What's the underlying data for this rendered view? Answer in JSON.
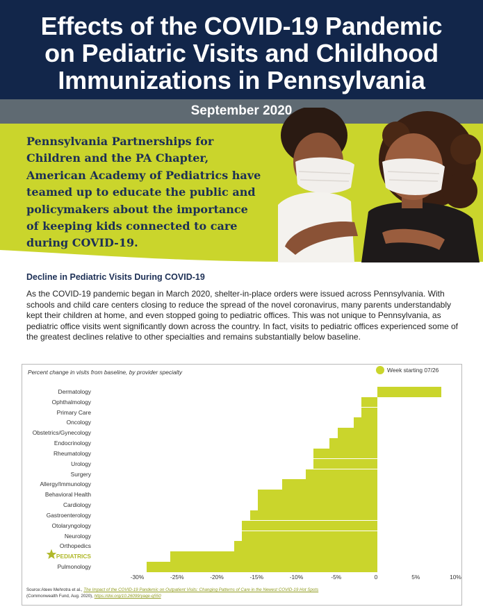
{
  "header": {
    "title_line1": "Effects of the COVID-19 Pandemic",
    "title_line2": "on Pediatric Visits and Childhood",
    "title_line3": "Immunizations in Pennsylvania",
    "date": "September 2020"
  },
  "hero": {
    "lines": [
      "Pennsylvania Partnerships for",
      "Children and the PA Chapter,",
      "American Academy of Pediatrics have",
      "teamed up to educate the public and",
      "policymakers about the importance",
      "of keeping kids connected to care",
      "during COVID-19."
    ]
  },
  "section": {
    "title": "Decline in Pediatric Visits During COVID-19",
    "body": "As the COVID-19 pandemic began in March 2020, shelter-in-place orders were issued across Pennsylvania. With schools and child care centers closing to reduce the spread of the novel coronavirus, many parents understandably kept their children at home, and even stopped going to pediatric offices. This was not unique to Pennsylvania, as pediatric office visits went significantly down across the country. In fact, visits to pediatric offices experienced some of the greatest declines relative to other specialties and remains substantially below baseline."
  },
  "chart_data": {
    "type": "bar",
    "orientation": "horizontal",
    "subtitle": "Percent change in visits from baseline, by provider specialty",
    "categories": [
      "Dermatology",
      "Ophthalmology",
      "Primary Care",
      "Oncology",
      "Obstetrics/Gynecology",
      "Endocrinology",
      "Rheumatology",
      "Urology",
      "Surgery",
      "Allergy/Immunology",
      "Behavioral Health",
      "Cardiology",
      "Gastroenterology",
      "Otolaryngology",
      "Neurology",
      "Orthopedics",
      "PEDIATRICS",
      "Pulmonology"
    ],
    "highlight": "PEDIATRICS",
    "series": [
      {
        "name": "Week starting 07/26",
        "values": [
          8,
          -2,
          -2,
          -3,
          -5,
          -6,
          -8,
          -8,
          -9,
          -12,
          -15,
          -15,
          -16,
          -17,
          -17,
          -18,
          -26,
          -29
        ]
      }
    ],
    "xlim": [
      -30,
      10
    ],
    "xticks": [
      -30,
      -25,
      -20,
      -15,
      -10,
      -5,
      0,
      5,
      10
    ],
    "xtick_labels": [
      "-30%",
      "-25%",
      "-20%",
      "-15%",
      "-10%",
      "-5%",
      "0",
      "5%",
      "10%"
    ],
    "legend_position": "top-right",
    "color": "#cad52c",
    "highlight_color": "#b0b82a",
    "grid": false
  },
  "source": {
    "prefix": "Source:Ateev Mehrotra et al.,",
    "title": "The Impact of the COVID-19 Pandemic on Outpatient Visits: Changing Patterns of Care in the Newest COVID-19 Hot Spots",
    "publisher": "(Commonwealth Fund, Aug. 2020),",
    "doi": "https://doi.org/10.26099/yaqe-q550"
  },
  "colors": {
    "navy": "#12264a",
    "gray_band": "#5f6a72",
    "lime": "#cad52c"
  }
}
